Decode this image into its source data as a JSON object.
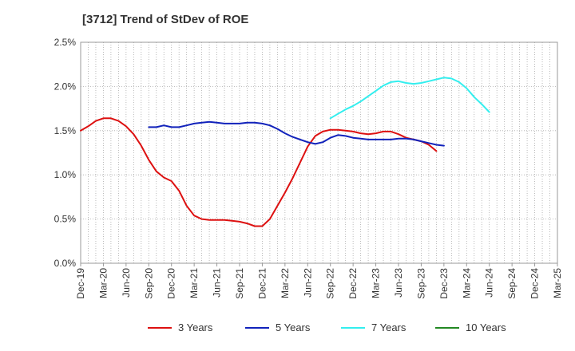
{
  "chart_data": {
    "type": "line",
    "title": "[3712]  Trend of StDev of ROE",
    "xlabel": "",
    "ylabel": "",
    "y_ticks": [
      "0.0%",
      "0.5%",
      "1.0%",
      "1.5%",
      "2.0%",
      "2.5%"
    ],
    "ylim": [
      0,
      2.5
    ],
    "x_ticks": [
      "Dec-19",
      "Mar-20",
      "Jun-20",
      "Sep-20",
      "Dec-20",
      "Mar-21",
      "Jun-21",
      "Sep-21",
      "Dec-21",
      "Mar-22",
      "Jun-22",
      "Sep-22",
      "Dec-22",
      "Mar-23",
      "Jun-23",
      "Sep-23",
      "Dec-23",
      "Mar-24",
      "Jun-24",
      "Sep-24",
      "Dec-24",
      "Mar-25"
    ],
    "grid": "vertical-dotted-and-horizontal",
    "legend_position": "bottom",
    "series": [
      {
        "name": "3 Years",
        "color": "#dd1111",
        "points": [
          [
            0,
            1.5
          ],
          [
            1,
            1.55
          ],
          [
            2,
            1.61
          ],
          [
            3,
            1.64
          ],
          [
            4,
            1.64
          ],
          [
            5,
            1.61
          ],
          [
            6,
            1.55
          ],
          [
            7,
            1.46
          ],
          [
            8,
            1.33
          ],
          [
            9,
            1.17
          ],
          [
            10,
            1.04
          ],
          [
            11,
            0.97
          ],
          [
            12,
            0.93
          ],
          [
            13,
            0.82
          ],
          [
            14,
            0.65
          ],
          [
            15,
            0.54
          ],
          [
            16,
            0.5
          ],
          [
            17,
            0.49
          ],
          [
            18,
            0.49
          ],
          [
            19,
            0.49
          ],
          [
            20,
            0.48
          ],
          [
            21,
            0.47
          ],
          [
            22,
            0.45
          ],
          [
            23,
            0.42
          ],
          [
            24,
            0.42
          ],
          [
            25,
            0.5
          ],
          [
            26,
            0.65
          ],
          [
            27,
            0.8
          ],
          [
            28,
            0.96
          ],
          [
            29,
            1.14
          ],
          [
            30,
            1.32
          ],
          [
            31,
            1.44
          ],
          [
            32,
            1.49
          ],
          [
            33,
            1.51
          ],
          [
            34,
            1.51
          ],
          [
            35,
            1.5
          ],
          [
            36,
            1.49
          ],
          [
            37,
            1.47
          ],
          [
            38,
            1.46
          ],
          [
            39,
            1.47
          ],
          [
            40,
            1.49
          ],
          [
            41,
            1.49
          ],
          [
            42,
            1.46
          ],
          [
            43,
            1.42
          ],
          [
            44,
            1.4
          ],
          [
            45,
            1.38
          ],
          [
            46,
            1.34
          ],
          [
            47,
            1.27
          ]
        ]
      },
      {
        "name": "5 Years",
        "color": "#1122bb",
        "points": [
          [
            9,
            1.54
          ],
          [
            10,
            1.54
          ],
          [
            11,
            1.56
          ],
          [
            12,
            1.54
          ],
          [
            13,
            1.54
          ],
          [
            14,
            1.56
          ],
          [
            15,
            1.58
          ],
          [
            16,
            1.59
          ],
          [
            17,
            1.6
          ],
          [
            18,
            1.59
          ],
          [
            19,
            1.58
          ],
          [
            20,
            1.58
          ],
          [
            21,
            1.58
          ],
          [
            22,
            1.59
          ],
          [
            23,
            1.59
          ],
          [
            24,
            1.58
          ],
          [
            25,
            1.56
          ],
          [
            26,
            1.52
          ],
          [
            27,
            1.47
          ],
          [
            28,
            1.43
          ],
          [
            29,
            1.4
          ],
          [
            30,
            1.37
          ],
          [
            31,
            1.35
          ],
          [
            32,
            1.37
          ],
          [
            33,
            1.42
          ],
          [
            34,
            1.45
          ],
          [
            35,
            1.44
          ],
          [
            36,
            1.42
          ],
          [
            37,
            1.41
          ],
          [
            38,
            1.4
          ],
          [
            39,
            1.4
          ],
          [
            40,
            1.4
          ],
          [
            41,
            1.4
          ],
          [
            42,
            1.41
          ],
          [
            43,
            1.41
          ],
          [
            44,
            1.4
          ],
          [
            45,
            1.38
          ],
          [
            46,
            1.36
          ],
          [
            47,
            1.34
          ],
          [
            48,
            1.33
          ]
        ]
      },
      {
        "name": "7 Years",
        "color": "#33eeee",
        "points": [
          [
            33,
            1.64
          ],
          [
            34,
            1.69
          ],
          [
            35,
            1.74
          ],
          [
            36,
            1.78
          ],
          [
            37,
            1.83
          ],
          [
            38,
            1.89
          ],
          [
            39,
            1.95
          ],
          [
            40,
            2.01
          ],
          [
            41,
            2.05
          ],
          [
            42,
            2.06
          ],
          [
            43,
            2.04
          ],
          [
            44,
            2.03
          ],
          [
            45,
            2.04
          ],
          [
            46,
            2.06
          ],
          [
            47,
            2.08
          ],
          [
            48,
            2.1
          ],
          [
            49,
            2.09
          ],
          [
            50,
            2.05
          ],
          [
            51,
            1.98
          ],
          [
            52,
            1.88
          ],
          [
            53,
            1.8
          ],
          [
            54,
            1.71
          ]
        ]
      },
      {
        "name": "10 Years",
        "color": "#228822",
        "points": []
      }
    ]
  }
}
